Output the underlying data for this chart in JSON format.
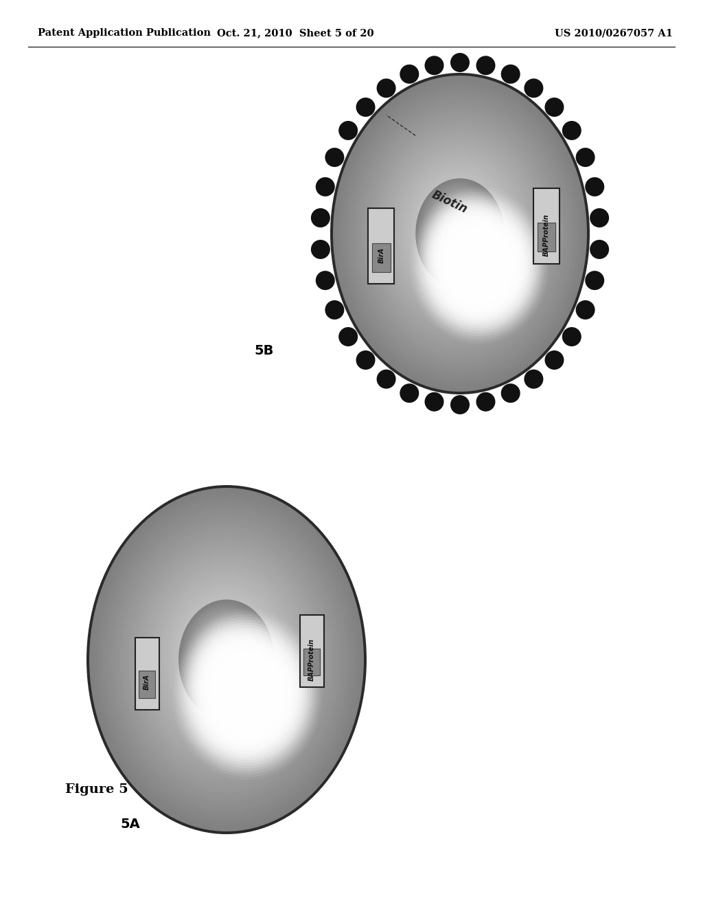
{
  "header_left": "Patent Application Publication",
  "header_mid": "Oct. 21, 2010  Sheet 5 of 20",
  "header_right": "US 2010/0267057 A1",
  "fig_label": "Figure 5",
  "label_5a": "5A",
  "label_5b": "5B",
  "biotin_label": "Biotin",
  "bira_label": "BirA",
  "bap_protein_label": "BAPProtein",
  "background_color": "#ffffff",
  "dot_color": "#111111",
  "text_color": "#000000",
  "cell_edge_color": "#333333",
  "cell_body_dark": "#808080",
  "cell_body_mid": "#b0b0b0",
  "cell_center_light": "#ffffff",
  "header_fontsize": 10.5,
  "label_fontsize": 14
}
